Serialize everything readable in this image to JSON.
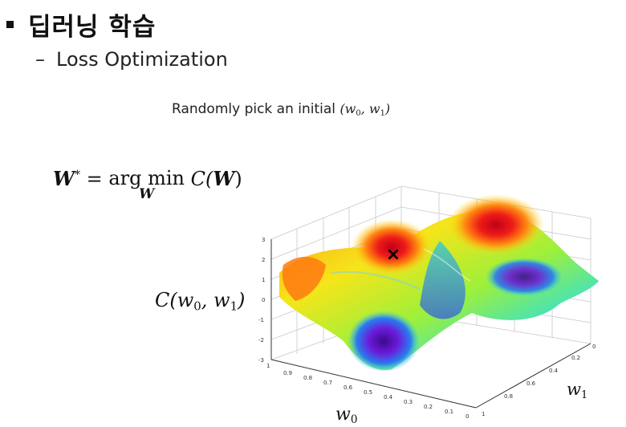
{
  "slide": {
    "title": "딥러닝 학습",
    "subtitle_dash": "–",
    "subtitle": "Loss Optimization",
    "caption_text": "Randomly pick an initial",
    "caption_math": "(w",
    "caption_math_sub0": "0",
    "caption_math_mid": ", w",
    "caption_math_sub1": "1",
    "caption_math_end": ")"
  },
  "formula": {
    "lhs": "W",
    "lhs_sup": "*",
    "eq": " = ",
    "op": "arg min",
    "op_sub": "W",
    "fn": "C(",
    "arg": "W",
    "close": ")"
  },
  "axes": {
    "y_label_fn": "C(w",
    "y_label_sub0": "0",
    "y_label_mid": ", w",
    "y_label_sub1": "1",
    "y_label_end": ")",
    "x_label": "w",
    "x_label_sub": "0",
    "w1_label": "w",
    "w1_label_sub": "1",
    "z_ticks": [
      "3",
      "2",
      "1",
      "0",
      "-1",
      "-2",
      "-3"
    ],
    "w0_ticks": [
      "1",
      "0.9",
      "0.8",
      "0.7",
      "0.6",
      "0.5",
      "0.4",
      "0.3",
      "0.2",
      "0.1",
      "0"
    ],
    "w1_ticks": [
      "0",
      "0.2",
      "0.4",
      "0.6",
      "0.8",
      "1"
    ],
    "marker": "×"
  },
  "colors": {
    "surface_high": "#e0101a",
    "surface_mid": "#f5e51a",
    "surface_low": "#6b1ad8"
  }
}
